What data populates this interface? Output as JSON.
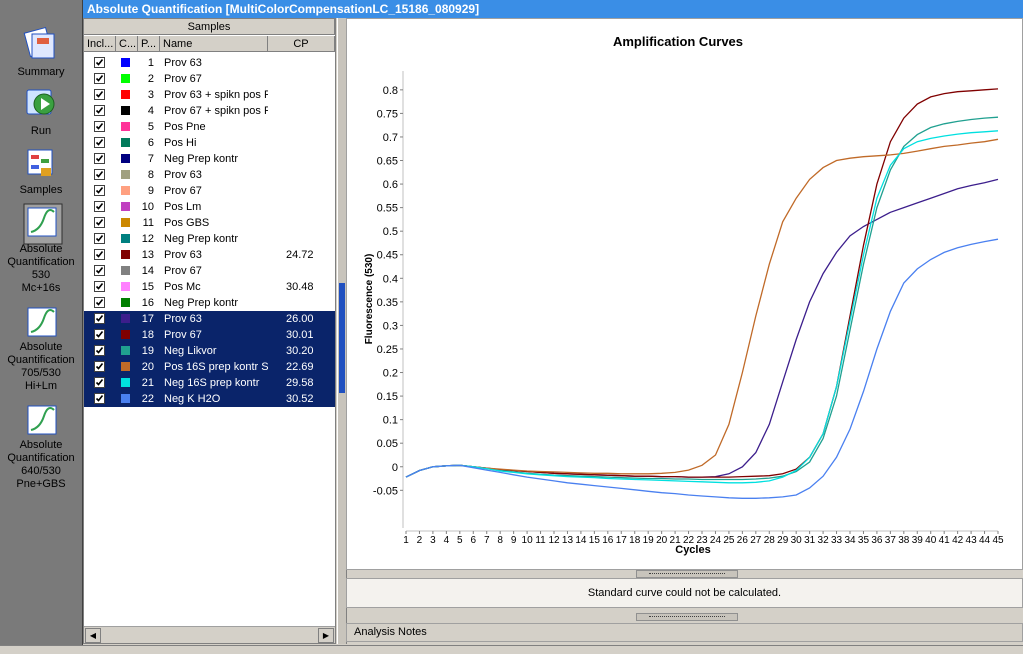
{
  "window_title": "Absolute Quantification [MultiColorCompensationLC_15186_080929]",
  "sidebar": [
    {
      "lines": [
        "Summary"
      ]
    },
    {
      "lines": [
        "Run"
      ]
    },
    {
      "lines": [
        "Samples"
      ]
    },
    {
      "lines": [
        "Absolute",
        "Quantification",
        "530",
        "Mc+16s"
      ],
      "selected": true
    },
    {
      "lines": [
        "Absolute",
        "Quantification",
        "705/530",
        "Hi+Lm"
      ]
    },
    {
      "lines": [
        "Absolute",
        "Quantification",
        "640/530",
        "Pne+GBS"
      ]
    }
  ],
  "table": {
    "group_header": "Samples",
    "columns": [
      "Incl...",
      "C...",
      "P...",
      "Name",
      "CP"
    ],
    "rows": [
      {
        "included": true,
        "color": "#0000ff",
        "pos": 1,
        "name": "Prov 63"
      },
      {
        "included": true,
        "color": "#00ff00",
        "pos": 2,
        "name": "Prov 67"
      },
      {
        "included": true,
        "color": "#ff0000",
        "pos": 3,
        "name": "Prov 63 + spikn pos P"
      },
      {
        "included": true,
        "color": "#000000",
        "pos": 4,
        "name": "Prov 67 + spikn pos P"
      },
      {
        "included": true,
        "color": "#ff3399",
        "pos": 5,
        "name": "Pos Pne"
      },
      {
        "included": true,
        "color": "#007a5a",
        "pos": 6,
        "name": "Pos Hi"
      },
      {
        "included": true,
        "color": "#000080",
        "pos": 7,
        "name": "Neg Prep kontr"
      },
      {
        "included": true,
        "color": "#a0a080",
        "pos": 8,
        "name": "Prov 63"
      },
      {
        "included": true,
        "color": "#ffa080",
        "pos": 9,
        "name": "Prov 67"
      },
      {
        "included": true,
        "color": "#c040c0",
        "pos": 10,
        "name": "Pos Lm"
      },
      {
        "included": true,
        "color": "#cc8800",
        "pos": 11,
        "name": "Pos GBS"
      },
      {
        "included": true,
        "color": "#008080",
        "pos": 12,
        "name": "Neg Prep kontr"
      },
      {
        "included": true,
        "color": "#800000",
        "pos": 13,
        "name": "Prov 63",
        "cp": "24.72"
      },
      {
        "included": true,
        "color": "#808080",
        "pos": 14,
        "name": "Prov 67"
      },
      {
        "included": true,
        "color": "#ff80ff",
        "pos": 15,
        "name": "Pos Mc",
        "cp": "30.48"
      },
      {
        "included": true,
        "color": "#008000",
        "pos": 16,
        "name": "Neg Prep kontr"
      },
      {
        "included": true,
        "color": "#3c1e8c",
        "pos": 17,
        "name": "Prov 63",
        "cp": "26.00",
        "selected": true
      },
      {
        "included": true,
        "color": "#800000",
        "pos": 18,
        "name": "Prov 67",
        "cp": "30.01",
        "selected": true
      },
      {
        "included": true,
        "color": "#20a090",
        "pos": 19,
        "name": "Neg Likvor",
        "cp": "30.20",
        "selected": true
      },
      {
        "included": true,
        "color": "#c06a28",
        "pos": 20,
        "name": "Pos 16S prep kontr S.",
        "cp": "22.69",
        "selected": true
      },
      {
        "included": true,
        "color": "#00e0e0",
        "pos": 21,
        "name": "Neg 16S prep kontr",
        "cp": "29.58",
        "selected": true
      },
      {
        "included": true,
        "color": "#4a80f0",
        "pos": 22,
        "name": "Neg K H2O",
        "cp": "30.52",
        "selected": true
      }
    ]
  },
  "chart_data": {
    "type": "line",
    "title": "Amplification Curves",
    "x_label": "Cycles",
    "y_label": "Fluorescence (530)",
    "x": [
      1,
      2,
      3,
      4,
      5,
      6,
      7,
      8,
      9,
      10,
      11,
      12,
      13,
      14,
      15,
      16,
      17,
      18,
      19,
      20,
      21,
      22,
      23,
      24,
      25,
      26,
      27,
      28,
      29,
      30,
      31,
      32,
      33,
      34,
      35,
      36,
      37,
      38,
      39,
      40,
      41,
      42,
      43,
      44,
      45
    ],
    "xlim": [
      1,
      45
    ],
    "xticks": [
      1,
      2,
      3,
      4,
      5,
      6,
      7,
      8,
      9,
      10,
      11,
      12,
      13,
      14,
      15,
      16,
      17,
      18,
      19,
      20,
      21,
      22,
      23,
      24,
      25,
      26,
      27,
      28,
      29,
      30,
      31,
      32,
      33,
      34,
      35,
      36,
      37,
      38,
      39,
      40,
      41,
      42,
      43,
      44,
      45
    ],
    "ylim": [
      -0.13,
      0.84
    ],
    "yticks": [
      -0.05,
      0,
      0.05,
      0.1,
      0.15,
      0.2,
      0.25,
      0.3,
      0.35,
      0.4,
      0.45,
      0.5,
      0.55,
      0.6,
      0.65,
      0.7,
      0.75,
      0.8
    ],
    "series": [
      {
        "color": "#3c1e8c",
        "values": [
          -0.022,
          -0.008,
          0,
          0.002,
          0.003,
          0,
          -0.003,
          -0.006,
          -0.008,
          -0.01,
          -0.012,
          -0.014,
          -0.015,
          -0.016,
          -0.017,
          -0.018,
          -0.019,
          -0.02,
          -0.02,
          -0.021,
          -0.021,
          -0.022,
          -0.022,
          -0.021,
          -0.015,
          0,
          0.03,
          0.09,
          0.18,
          0.27,
          0.35,
          0.41,
          0.455,
          0.49,
          0.51,
          0.525,
          0.54,
          0.55,
          0.56,
          0.57,
          0.58,
          0.59,
          0.597,
          0.603,
          0.61
        ]
      },
      {
        "color": "#800000",
        "values": [
          -0.022,
          -0.008,
          0,
          0.002,
          0.003,
          0,
          -0.003,
          -0.006,
          -0.008,
          -0.01,
          -0.012,
          -0.014,
          -0.015,
          -0.016,
          -0.017,
          -0.018,
          -0.019,
          -0.02,
          -0.02,
          -0.021,
          -0.021,
          -0.022,
          -0.022,
          -0.022,
          -0.022,
          -0.021,
          -0.02,
          -0.019,
          -0.015,
          -0.005,
          0.02,
          0.07,
          0.17,
          0.32,
          0.47,
          0.6,
          0.69,
          0.74,
          0.77,
          0.785,
          0.792,
          0.796,
          0.798,
          0.8,
          0.802
        ]
      },
      {
        "color": "#20a090",
        "values": [
          -0.022,
          -0.008,
          0,
          0.002,
          0.003,
          0,
          -0.004,
          -0.008,
          -0.011,
          -0.014,
          -0.016,
          -0.018,
          -0.019,
          -0.02,
          -0.021,
          -0.022,
          -0.023,
          -0.024,
          -0.025,
          -0.025,
          -0.026,
          -0.026,
          -0.027,
          -0.027,
          -0.027,
          -0.027,
          -0.026,
          -0.024,
          -0.02,
          -0.01,
          0.01,
          0.06,
          0.15,
          0.29,
          0.43,
          0.55,
          0.63,
          0.68,
          0.705,
          0.72,
          0.728,
          0.733,
          0.737,
          0.74,
          0.742
        ]
      },
      {
        "color": "#c06a28",
        "values": [
          -0.022,
          -0.008,
          0,
          0.002,
          0.003,
          0,
          -0.003,
          -0.005,
          -0.007,
          -0.009,
          -0.01,
          -0.011,
          -0.012,
          -0.013,
          -0.014,
          -0.014,
          -0.015,
          -0.015,
          -0.015,
          -0.014,
          -0.012,
          -0.007,
          0.003,
          0.025,
          0.09,
          0.2,
          0.32,
          0.43,
          0.52,
          0.57,
          0.61,
          0.635,
          0.65,
          0.655,
          0.658,
          0.66,
          0.662,
          0.665,
          0.67,
          0.675,
          0.68,
          0.683,
          0.687,
          0.69,
          0.695
        ]
      },
      {
        "color": "#00e0e0",
        "values": [
          -0.022,
          -0.008,
          0,
          0.002,
          0.003,
          0,
          -0.004,
          -0.009,
          -0.012,
          -0.015,
          -0.017,
          -0.019,
          -0.021,
          -0.022,
          -0.023,
          -0.025,
          -0.026,
          -0.027,
          -0.028,
          -0.029,
          -0.03,
          -0.031,
          -0.032,
          -0.033,
          -0.034,
          -0.034,
          -0.033,
          -0.03,
          -0.022,
          -0.008,
          0.02,
          0.07,
          0.17,
          0.31,
          0.45,
          0.57,
          0.64,
          0.675,
          0.69,
          0.697,
          0.702,
          0.706,
          0.709,
          0.711,
          0.713
        ]
      },
      {
        "color": "#4a80f0",
        "values": [
          -0.022,
          -0.008,
          0,
          0.002,
          0.003,
          -0.002,
          -0.007,
          -0.012,
          -0.017,
          -0.022,
          -0.026,
          -0.03,
          -0.034,
          -0.037,
          -0.04,
          -0.043,
          -0.046,
          -0.049,
          -0.052,
          -0.055,
          -0.057,
          -0.06,
          -0.062,
          -0.064,
          -0.066,
          -0.067,
          -0.067,
          -0.066,
          -0.064,
          -0.06,
          -0.045,
          -0.02,
          0.02,
          0.08,
          0.16,
          0.25,
          0.33,
          0.39,
          0.42,
          0.44,
          0.455,
          0.465,
          0.472,
          0.478,
          0.483
        ]
      }
    ]
  },
  "status": "Standard curve could not be calculated.",
  "notes_tab": "Analysis Notes"
}
